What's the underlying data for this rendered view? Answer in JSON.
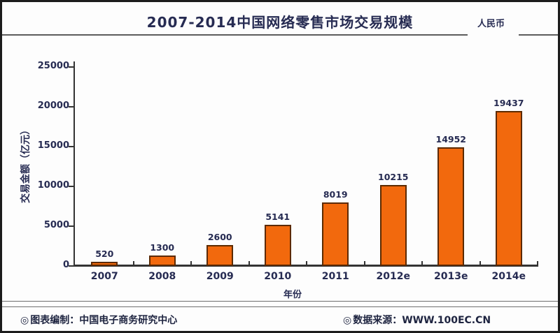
{
  "header": {
    "title": "2007-2014中国网络零售市场交易规模",
    "currency_label": "人民币"
  },
  "chart_data": {
    "type": "bar",
    "categories": [
      "2007",
      "2008",
      "2009",
      "2010",
      "2011",
      "2012e",
      "2013e",
      "2014e"
    ],
    "values": [
      520,
      1300,
      2600,
      5141,
      8019,
      10215,
      14952,
      19437
    ],
    "title": "2007-2014中国网络零售市场交易规模",
    "xlabel": "年份",
    "ylabel": "交易金额（亿元）",
    "ylim": [
      0,
      25000
    ],
    "yticks": [
      0,
      5000,
      10000,
      15000,
      20000,
      25000
    ],
    "bar_color": "#F2690D",
    "bar_border_color": "#5c2a00",
    "grid": false,
    "legend": "none"
  },
  "footer": {
    "left_icon": "◎",
    "left_text": "图表编制：中国电子商务研究中心",
    "right_icon": "◎",
    "right_text": "数据来源：WWW.100EC.CN"
  },
  "colors": {
    "text": "#262b52",
    "axis": "#333333",
    "background": "#fdfdfd",
    "frame_border": "#1c1c1c"
  }
}
